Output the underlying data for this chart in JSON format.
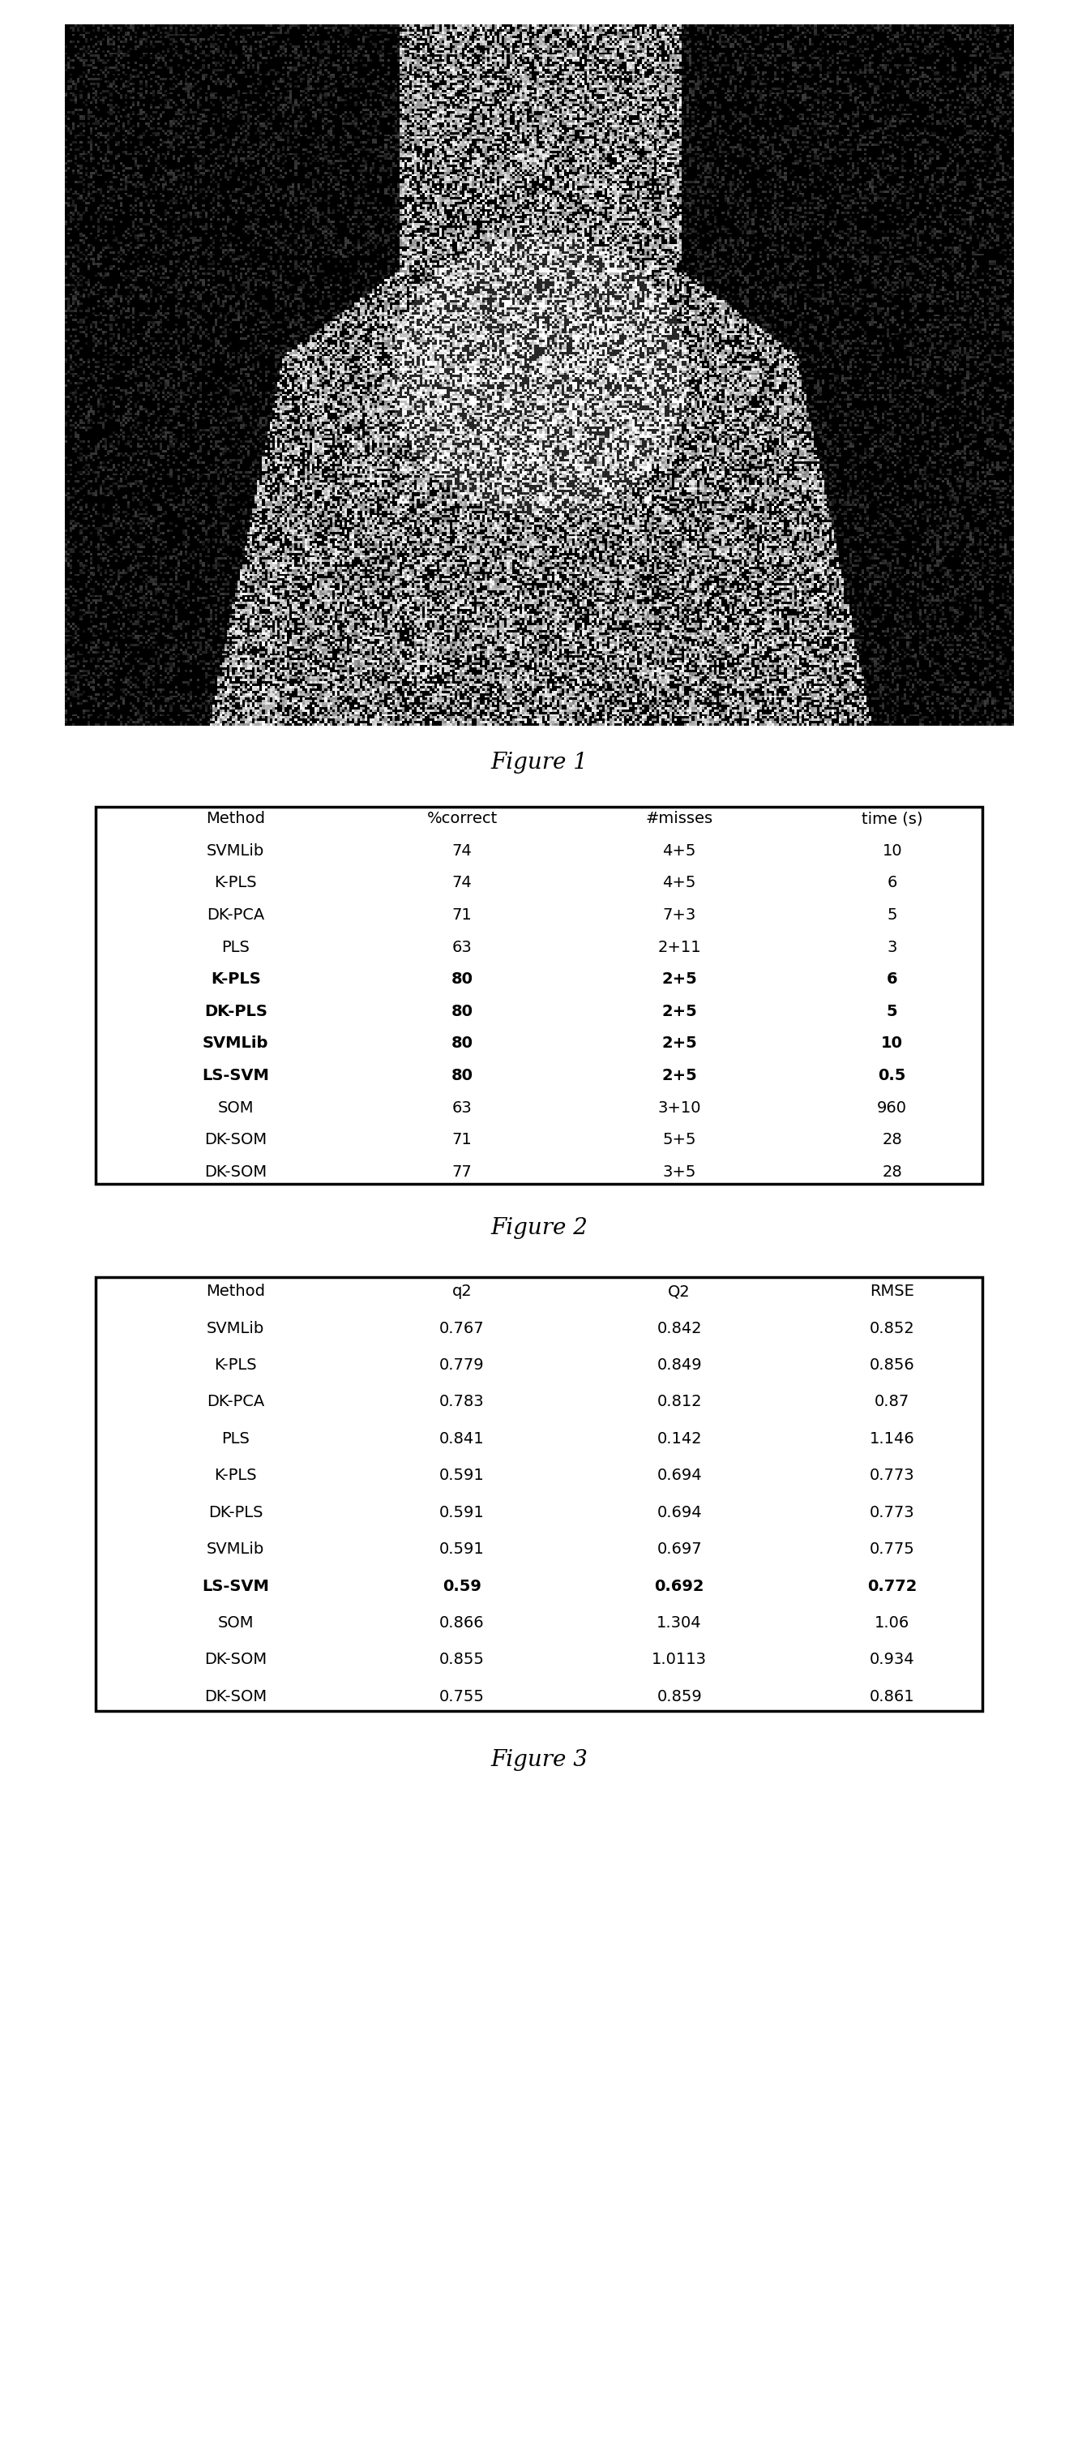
{
  "fig1_caption": "Figure 1",
  "fig2_caption": "Figure 2",
  "fig3_caption": "Figure 3",
  "table1_headers": [
    "Method",
    "%correct",
    "#misses",
    "time (s)"
  ],
  "table1_rows": [
    [
      "SVMLib",
      "74",
      "4+5",
      "10"
    ],
    [
      "K-PLS",
      "74",
      "4+5",
      "6"
    ],
    [
      "DK-PCA",
      "71",
      "7+3",
      "5"
    ],
    [
      "PLS",
      "63",
      "2+11",
      "3"
    ],
    [
      "K-PLS",
      "80",
      "2+5",
      "6"
    ],
    [
      "DK-PLS",
      "80",
      "2+5",
      "5"
    ],
    [
      "SVMLib",
      "80",
      "2+5",
      "10"
    ],
    [
      "LS-SVM",
      "80",
      "2+5",
      "0.5"
    ],
    [
      "SOM",
      "63",
      "3+10",
      "960"
    ],
    [
      "DK-SOM",
      "71",
      "5+5",
      "28"
    ],
    [
      "DK-SOM",
      "77",
      "3+5",
      "28"
    ]
  ],
  "table1_bold_rows": [
    4,
    5,
    6,
    7
  ],
  "table2_headers": [
    "Method",
    "q2",
    "Q2",
    "RMSE"
  ],
  "table2_rows": [
    [
      "SVMLib",
      "0.767",
      "0.842",
      "0.852"
    ],
    [
      "K-PLS",
      "0.779",
      "0.849",
      "0.856"
    ],
    [
      "DK-PCA",
      "0.783",
      "0.812",
      "0.87"
    ],
    [
      "PLS",
      "0.841",
      "0.142",
      "1.146"
    ],
    [
      "K-PLS",
      "0.591",
      "0.694",
      "0.773"
    ],
    [
      "DK-PLS",
      "0.591",
      "0.694",
      "0.773"
    ],
    [
      "SVMLib",
      "0.591",
      "0.697",
      "0.775"
    ],
    [
      "LS-SVM",
      "0.59",
      "0.692",
      "0.772"
    ],
    [
      "SOM",
      "0.866",
      "1.304",
      "1.06"
    ],
    [
      "DK-SOM",
      "0.855",
      "1.0113",
      "0.934"
    ],
    [
      "DK-SOM",
      "0.755",
      "0.859",
      "0.861"
    ]
  ],
  "table2_bold_row": 7,
  "background_color": "#ffffff"
}
